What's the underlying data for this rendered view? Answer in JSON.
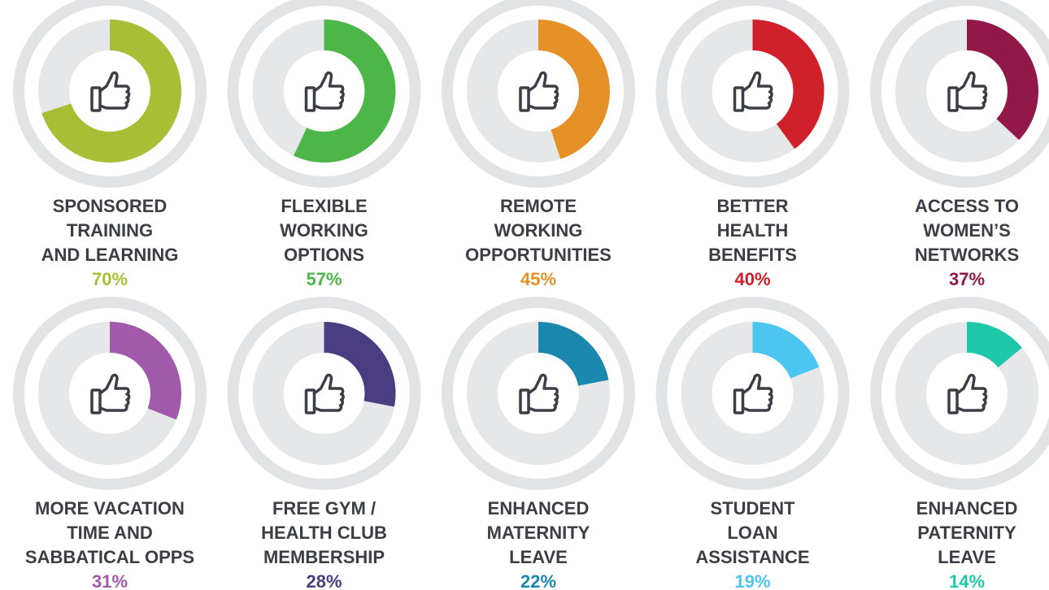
{
  "chart_data": [
    {
      "type": "donut",
      "title_lines": [
        "SPONSORED",
        "TRAINING",
        "AND LEARNING"
      ],
      "values": [
        70
      ],
      "value_labels": [
        "70%"
      ],
      "color": "#a8bf35"
    },
    {
      "type": "donut",
      "title_lines": [
        "FLEXIBLE",
        "WORKING",
        "OPTIONS"
      ],
      "values": [
        57
      ],
      "value_labels": [
        "57%"
      ],
      "color": "#4cb748"
    },
    {
      "type": "donut",
      "title_lines": [
        "REMOTE",
        "WORKING",
        "OPPORTUNITIES"
      ],
      "values": [
        45
      ],
      "value_labels": [
        "45%"
      ],
      "color": "#e69127"
    },
    {
      "type": "donut",
      "title_lines": [
        "BETTER",
        "HEALTH",
        "BENEFITS"
      ],
      "values": [
        40
      ],
      "value_labels": [
        "40%"
      ],
      "color": "#d0202a"
    },
    {
      "type": "donut",
      "title_lines": [
        "ACCESS TO",
        "WOMEN’S",
        "NETWORKS"
      ],
      "values": [
        37
      ],
      "value_labels": [
        "37%"
      ],
      "color": "#93184a"
    },
    {
      "type": "donut",
      "title_lines": [
        "MORE VACATION",
        "TIME AND",
        "SABBATICAL OPPS"
      ],
      "values": [
        31
      ],
      "value_labels": [
        "31%"
      ],
      "color": "#a05aa9"
    },
    {
      "type": "donut",
      "title_lines": [
        "FREE GYM /",
        "HEALTH CLUB",
        "MEMBERSHIP"
      ],
      "values": [
        28
      ],
      "value_labels": [
        "28%"
      ],
      "color": "#4b3d82"
    },
    {
      "type": "donut",
      "title_lines": [
        "ENHANCED",
        "MATERNITY",
        "LEAVE"
      ],
      "values": [
        22
      ],
      "value_labels": [
        "22%"
      ],
      "color": "#1a87ae"
    },
    {
      "type": "donut",
      "title_lines": [
        "STUDENT",
        "LOAN",
        "ASSISTANCE"
      ],
      "values": [
        19
      ],
      "value_labels": [
        "19%"
      ],
      "color": "#4cc6f0"
    },
    {
      "type": "donut",
      "title_lines": [
        "ENHANCED",
        "PATERNITY",
        "LEAVE"
      ],
      "values": [
        14
      ],
      "value_labels": [
        "14%"
      ],
      "color": "#1ec9a9"
    }
  ]
}
